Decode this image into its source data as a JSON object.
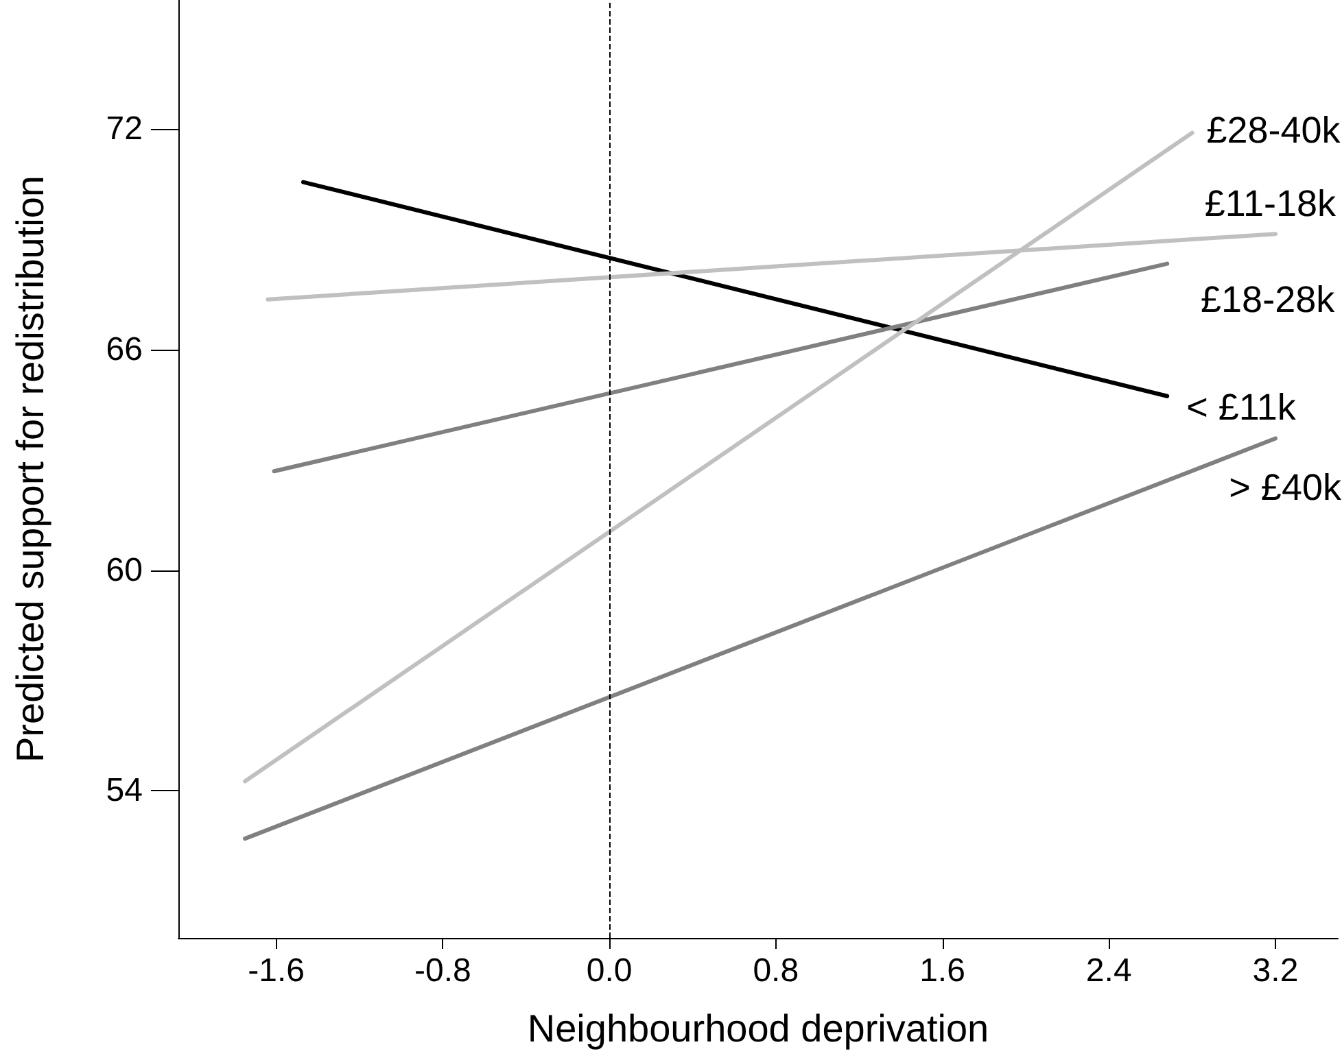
{
  "chart_data": {
    "type": "line",
    "xlabel": "Neighbourhood deprivation",
    "ylabel": "Predicted support for redistribution",
    "xlim": [
      -2.07,
      3.5
    ],
    "xticks": [
      -1.6,
      -0.8,
      {
        "value": 0,
        "label": "0.0"
      },
      0.8,
      1.6,
      2.4,
      3.2
    ],
    "ylim": [
      50,
      75.5
    ],
    "yticks": [
      54,
      60,
      66,
      72
    ],
    "grid": false,
    "legend": false,
    "marker": "none",
    "line_style": "solid",
    "ref_lines": [
      {
        "axis": "x",
        "value": 0,
        "line_style": "dashed",
        "color": "#000000"
      }
    ],
    "series": [
      {
        "name": "< £11k",
        "color": "#000000",
        "x": [
          -1.47,
          2.68
        ],
        "values": [
          70.55,
          64.73
        ]
      },
      {
        "name": "£11-18k",
        "color": "#c0c0c0",
        "x": [
          -1.64,
          3.2
        ],
        "values": [
          67.36,
          69.14
        ]
      },
      {
        "name": "£18-28k",
        "color": "#808080",
        "x": [
          -1.61,
          2.68
        ],
        "values": [
          62.69,
          68.33
        ]
      },
      {
        "name": "£28-40k",
        "color": "#c0c0c0",
        "x": [
          -1.75,
          2.8
        ],
        "values": [
          54.26,
          71.89
        ]
      },
      {
        "name": "> £40k",
        "color": "#808080",
        "x": [
          -1.75,
          3.2
        ],
        "values": [
          52.7,
          63.58
        ]
      }
    ]
  }
}
